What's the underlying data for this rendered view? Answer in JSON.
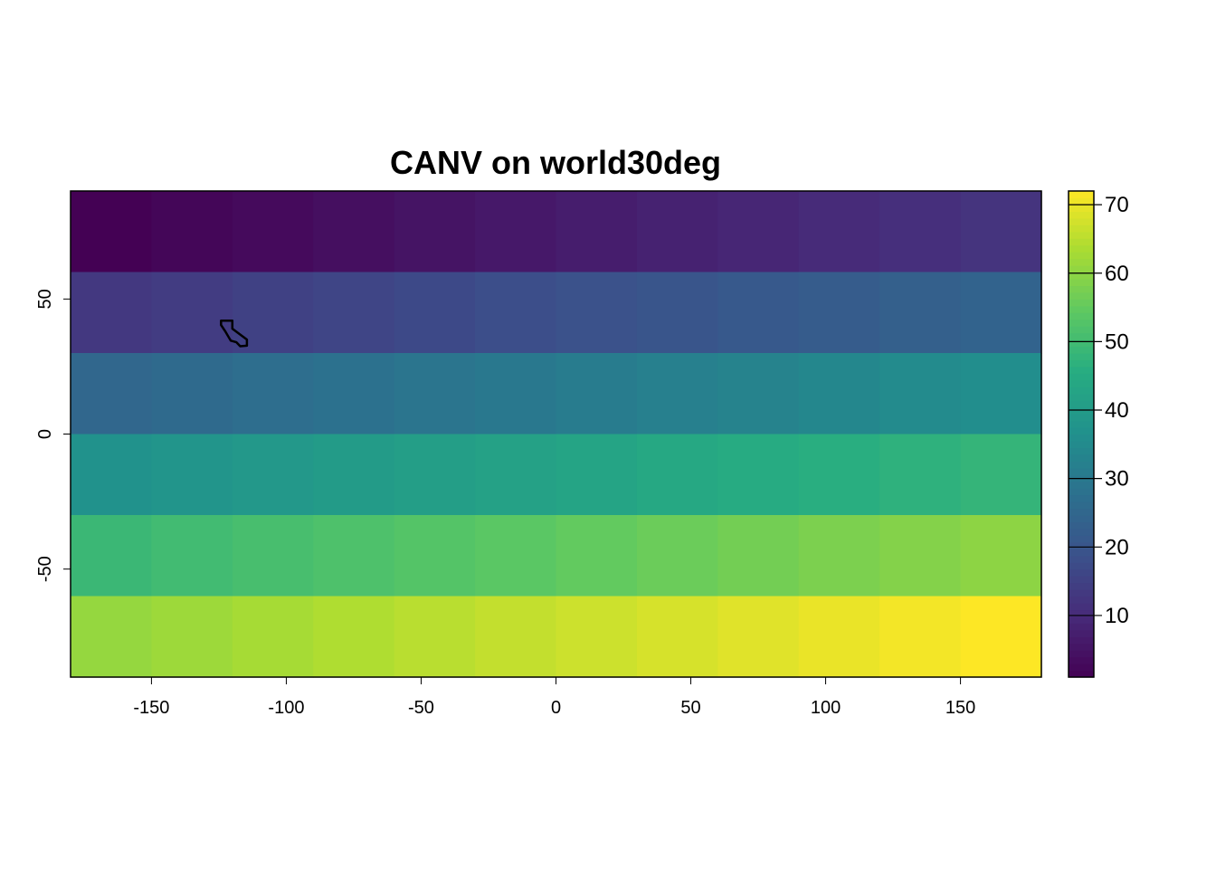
{
  "chart_data": {
    "type": "heatmap",
    "title": "CANV on world30deg",
    "xlabel": "",
    "ylabel": "",
    "xlim": [
      -180,
      180
    ],
    "ylim": [
      -90,
      90
    ],
    "x_ticks": [
      -150,
      -100,
      -50,
      0,
      50,
      100,
      150
    ],
    "y_ticks": [
      -50,
      0,
      50
    ],
    "x_tick_labels": [
      "-150",
      "-100",
      "-50",
      "0",
      "50",
      "100",
      "150"
    ],
    "y_tick_labels": [
      "-50",
      "0",
      "50"
    ],
    "cell_size_deg": 30,
    "rows_lat_top": [
      90,
      60,
      30,
      0,
      -30,
      -60
    ],
    "cols_lon_left": [
      -180,
      -150,
      -120,
      -90,
      -60,
      -30,
      0,
      30,
      60,
      90,
      120,
      150
    ],
    "values": [
      [
        1,
        2,
        3,
        4,
        5,
        6,
        7,
        8,
        9,
        10,
        11,
        12
      ],
      [
        13,
        14,
        15,
        16,
        17,
        18,
        19,
        20,
        21,
        22,
        23,
        24
      ],
      [
        25,
        26,
        27,
        28,
        29,
        30,
        31,
        32,
        33,
        34,
        35,
        36
      ],
      [
        37,
        38,
        39,
        40,
        41,
        42,
        43,
        44,
        45,
        46,
        47,
        48
      ],
      [
        49,
        50,
        51,
        52,
        53,
        54,
        55,
        56,
        57,
        58,
        59,
        60
      ],
      [
        61,
        62,
        63,
        64,
        65,
        66,
        67,
        68,
        69,
        70,
        71,
        72
      ]
    ],
    "value_range": [
      1,
      72
    ],
    "colormap": "viridis",
    "legend": {
      "position": "right",
      "ticks": [
        10,
        20,
        30,
        40,
        50,
        60,
        70
      ],
      "tick_labels": [
        "10",
        "20",
        "30",
        "40",
        "50",
        "60",
        "70"
      ]
    },
    "overlay_polygon": {
      "description_visible": false,
      "stroke": "#000000",
      "lonlat": [
        [
          -124.2,
          42.0
        ],
        [
          -120.0,
          42.0
        ],
        [
          -120.0,
          39.0
        ],
        [
          -114.6,
          35.0
        ],
        [
          -114.6,
          32.7
        ],
        [
          -117.1,
          32.5
        ],
        [
          -118.5,
          34.0
        ],
        [
          -120.6,
          34.6
        ],
        [
          -122.5,
          37.8
        ],
        [
          -124.2,
          40.4
        ],
        [
          -124.2,
          42.0
        ]
      ],
      "inner_line": [
        [
          -120.0,
          39.0
        ],
        [
          -120.0,
          42.0
        ]
      ]
    }
  }
}
